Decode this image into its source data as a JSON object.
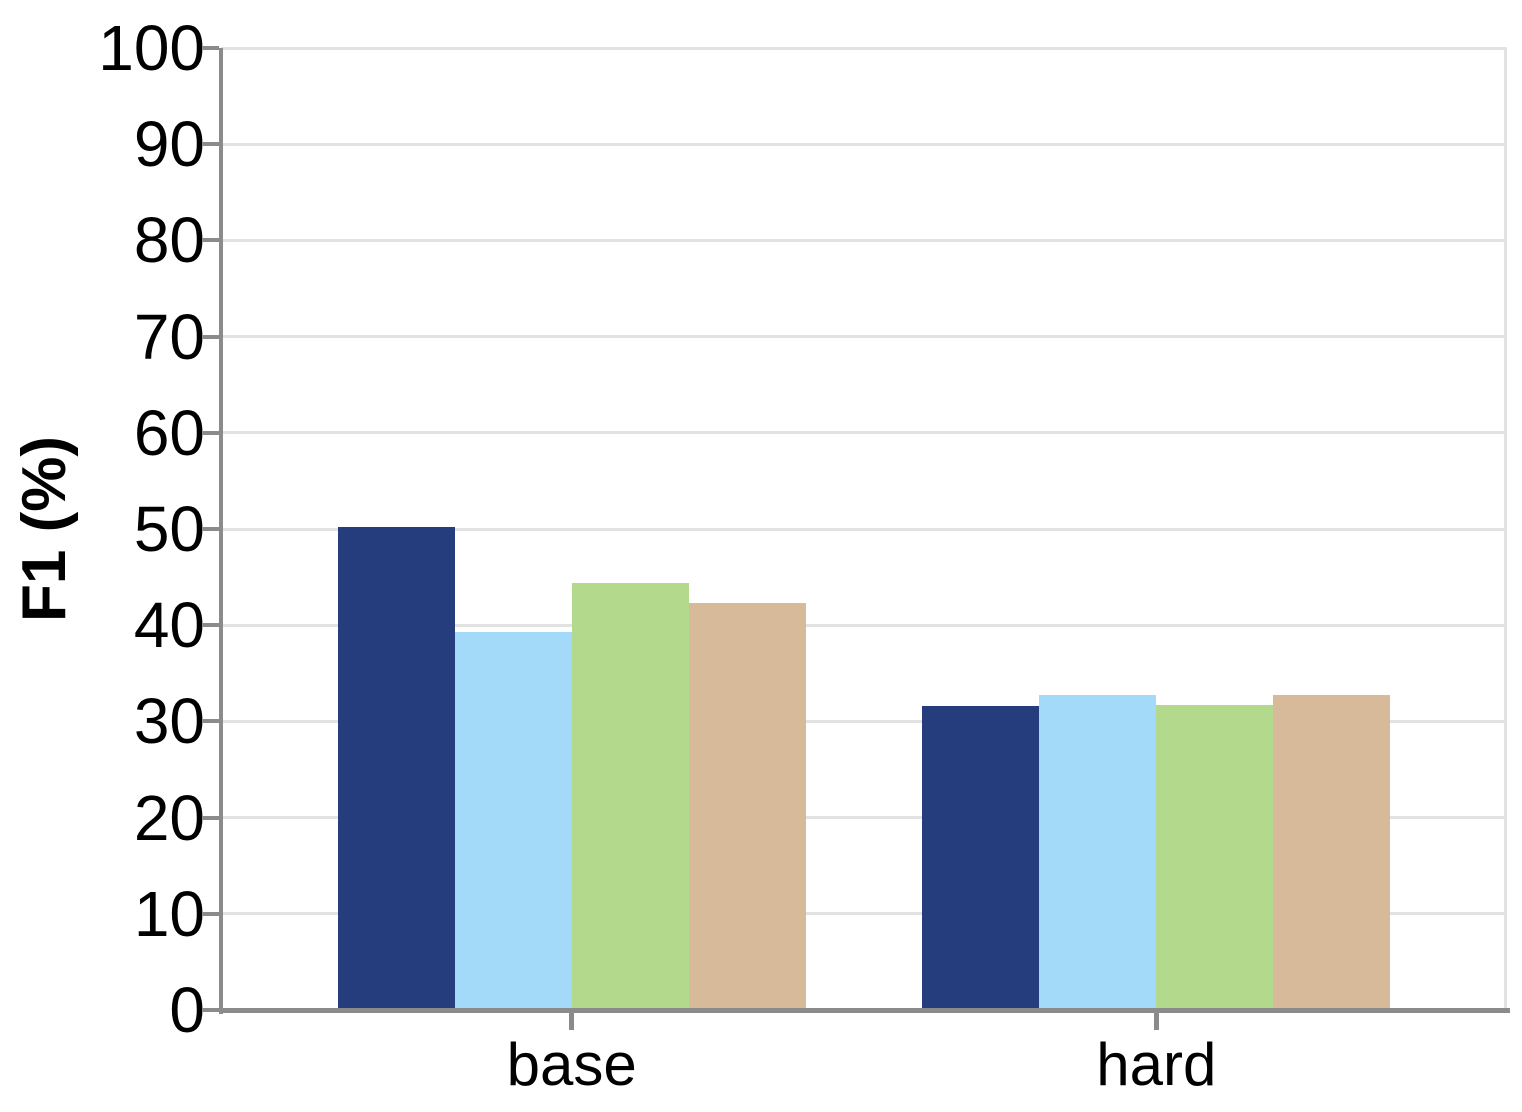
{
  "chart_data": {
    "type": "bar",
    "title": "",
    "xlabel": "",
    "ylabel": "F1 (%)",
    "categories": [
      "base",
      "hard"
    ],
    "series": [
      {
        "name": "navy",
        "color": "#253C7D",
        "values": [
          50.2,
          31.6
        ]
      },
      {
        "name": "light-blue",
        "color": "#A3DAFA",
        "values": [
          39.3,
          32.7
        ]
      },
      {
        "name": "green",
        "color": "#B3D98C",
        "values": [
          44.4,
          31.7
        ]
      },
      {
        "name": "tan",
        "color": "#D7BA99",
        "values": [
          42.3,
          32.7
        ]
      }
    ],
    "ylim": [
      0,
      100
    ],
    "yticks": [
      0,
      10,
      20,
      30,
      40,
      50,
      60,
      70,
      80,
      90,
      100
    ],
    "grid": true,
    "legend": "none",
    "axis_color": "#8B8B8B",
    "grid_color": "#E2E2E2",
    "tick_label_color": "#000000"
  }
}
